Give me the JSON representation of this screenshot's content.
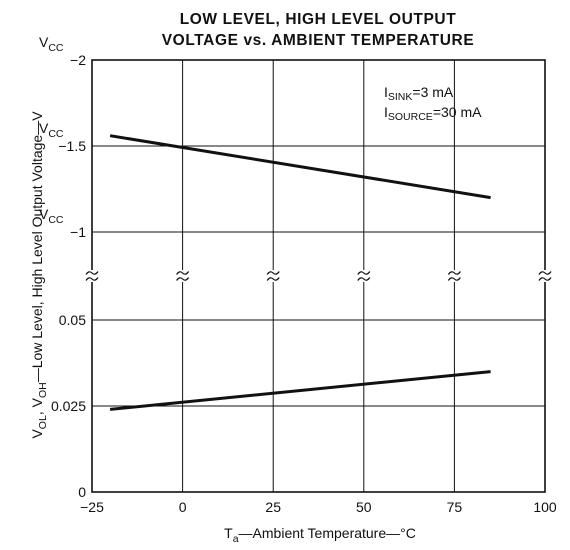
{
  "chart_data": {
    "type": "line",
    "title_lines": [
      "LOW LEVEL, HIGH LEVEL OUTPUT",
      "VOLTAGE vs. AMBIENT TEMPERATURE"
    ],
    "xlabel": {
      "main": "T",
      "sub": "a",
      "rest": "—Ambient Temperature—°C"
    },
    "ylabel": {
      "parts": [
        {
          "text": "V",
          "sub": "OL"
        },
        {
          "text": ", V",
          "sub": "OH"
        },
        {
          "text": "—Low Level, High Level Output Voltage—V",
          "sub": ""
        }
      ]
    },
    "x_axis": {
      "range": [
        -25,
        100
      ],
      "ticks": [
        -25,
        0,
        25,
        50,
        75,
        100
      ],
      "tick_labels": [
        "−25",
        "0",
        "25",
        "50",
        "75",
        "100"
      ]
    },
    "y_axis": {
      "broken": true,
      "upper_segment": {
        "quantity": "VOH",
        "range": [
          -1,
          -2
        ],
        "ticks": [
          {
            "value": -2,
            "prefix": "V",
            "prefix_sub": "CC",
            "label": "−2"
          },
          {
            "value": -1.5,
            "prefix": "V",
            "prefix_sub": "CC",
            "label": "−1.5"
          },
          {
            "value": -1,
            "prefix": "V",
            "prefix_sub": "CC",
            "label": "−1"
          }
        ]
      },
      "lower_segment": {
        "quantity": "VOL",
        "range": [
          0,
          0.05
        ],
        "ticks": [
          {
            "value": 0.05,
            "label": "0.05"
          },
          {
            "value": 0.025,
            "label": "0.025"
          },
          {
            "value": 0,
            "label": "0"
          }
        ]
      },
      "break_symbol": "≈"
    },
    "grid": true,
    "annotations": [
      {
        "text": "I",
        "sub": "SINK",
        "rest": "=3 mA"
      },
      {
        "text": "I",
        "sub": "SOURCE",
        "rest": "=30 mA"
      }
    ],
    "series": [
      {
        "segment": "upper",
        "x": [
          -20,
          85
        ],
        "y": [
          -1.56,
          -1.2
        ]
      },
      {
        "segment": "lower",
        "x": [
          -20,
          85
        ],
        "y": [
          0.024,
          0.035
        ]
      }
    ]
  }
}
